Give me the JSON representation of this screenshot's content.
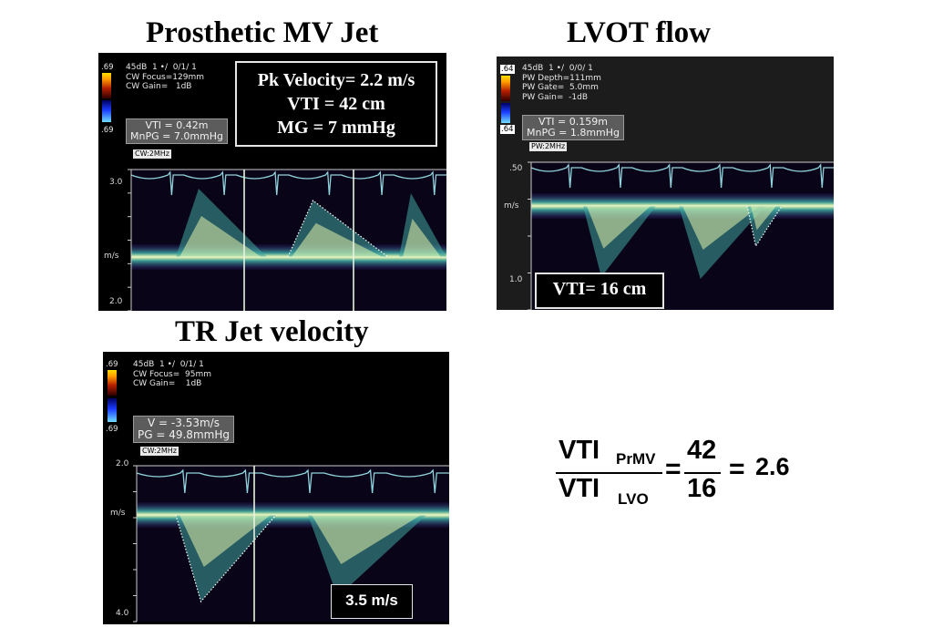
{
  "panels": {
    "prosthetic_mv": {
      "title": "Prosthetic MV Jet",
      "scale_top": ".69",
      "scale_bottom": ".69",
      "settings": [
        "45dB  1 •/  0/1/ 1",
        "CW Focus=129mm",
        "CW Gain=   1dB"
      ],
      "measurement": [
        "VTI = 0.42m",
        "MnPG = 7.0mmHg"
      ],
      "mode": "CW:2MHz",
      "callout": [
        "Pk Velocity= 2.2 m/s",
        "VTI = 42 cm",
        "MG = 7 mmHg"
      ],
      "axis": {
        "top": "3.0",
        "unit": "m/s",
        "bottom": "2.0"
      }
    },
    "lvot": {
      "title": "LVOT flow",
      "scale_top": ".64",
      "scale_bottom": ".64",
      "settings": [
        "45dB  1 •/  0/0/ 1",
        "PW Depth=111mm",
        "PW Gate=  5.0mm",
        "PW Gain=  -1dB"
      ],
      "measurement": [
        "VTI = 0.159m",
        "MnPG = 1.8mmHg"
      ],
      "mode": "PW:2MHz",
      "callout": [
        "VTI= 16 cm"
      ],
      "axis": {
        "top": ".50",
        "unit": "m/s",
        "bottom": "1.0"
      }
    },
    "tr_jet": {
      "title": "TR Jet velocity",
      "scale_top": ".69",
      "scale_bottom": ".69",
      "settings": [
        "45dB  1 •/  0/1/ 1",
        "CW Focus=  95mm",
        "CW Gain=    1dB"
      ],
      "measurement": [
        "V = -3.53m/s",
        "PG = 49.8mmHg"
      ],
      "mode": "CW:2MHz",
      "callout": [
        "3.5 m/s"
      ],
      "axis": {
        "top": "2.0",
        "unit": "m/s",
        "bottom": "4.0"
      }
    }
  },
  "formula": {
    "num_label": "VTI",
    "num_sub": "PrMV",
    "den_label": "VTI",
    "den_sub": "LVO",
    "equals": "=",
    "num_value": "42",
    "den_value": "16",
    "result": "2.6"
  },
  "colors": {
    "ecg": "#8fd3dc",
    "spectral_bright": "#f4ffb0",
    "spectral_mid": "#3fa7a0",
    "spectral_low": "#2a1a6e"
  }
}
